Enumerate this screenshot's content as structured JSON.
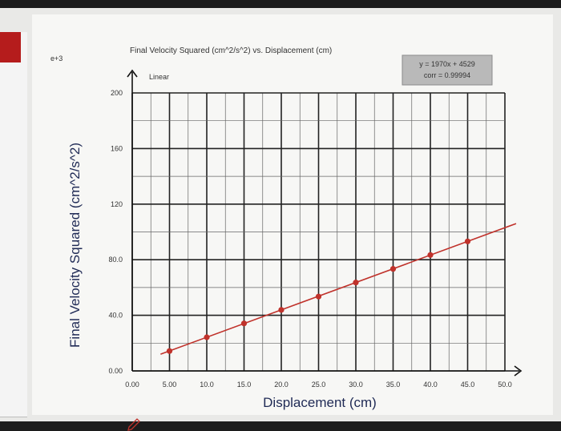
{
  "ui": {
    "exponent": "e+3",
    "fit_line1": "y = 1970x + 4529",
    "fit_line2": "corr = 0.99994",
    "colors": {
      "screen_bg": "#e9e9e7",
      "data": "#c0322b",
      "axis_title": "#1f2a55",
      "accent": "#b51c1c"
    }
  },
  "chart_data": {
    "type": "scatter",
    "title": "Final Velocity Squared (cm^2/s^2) vs. Displacement (cm)",
    "subtitle": "Linear",
    "xlabel": "Displacement (cm)",
    "ylabel": "Final Velocity Squared (cm^2/s^2)",
    "xlim": [
      0,
      50
    ],
    "ylim": [
      0,
      200
    ],
    "x_ticks": [
      "0.00",
      "5.00",
      "10.0",
      "15.0",
      "20.0",
      "25.0",
      "30.0",
      "35.0",
      "40.0",
      "45.0",
      "50.0"
    ],
    "y_ticks": [
      "0.00",
      "40.0",
      "80.0",
      "120",
      "160",
      "200"
    ],
    "grid": true,
    "series": [
      {
        "x": [
          5,
          10,
          15,
          20,
          25,
          30,
          35,
          40,
          45
        ],
        "y": [
          14.3,
          24.2,
          34.2,
          43.9,
          53.5,
          63.6,
          73.4,
          83.4,
          93.2
        ]
      }
    ],
    "fit": {
      "type": "linear",
      "slope": 1.97,
      "intercept": 4.529,
      "x_range": [
        3.8,
        51.5
      ]
    }
  }
}
